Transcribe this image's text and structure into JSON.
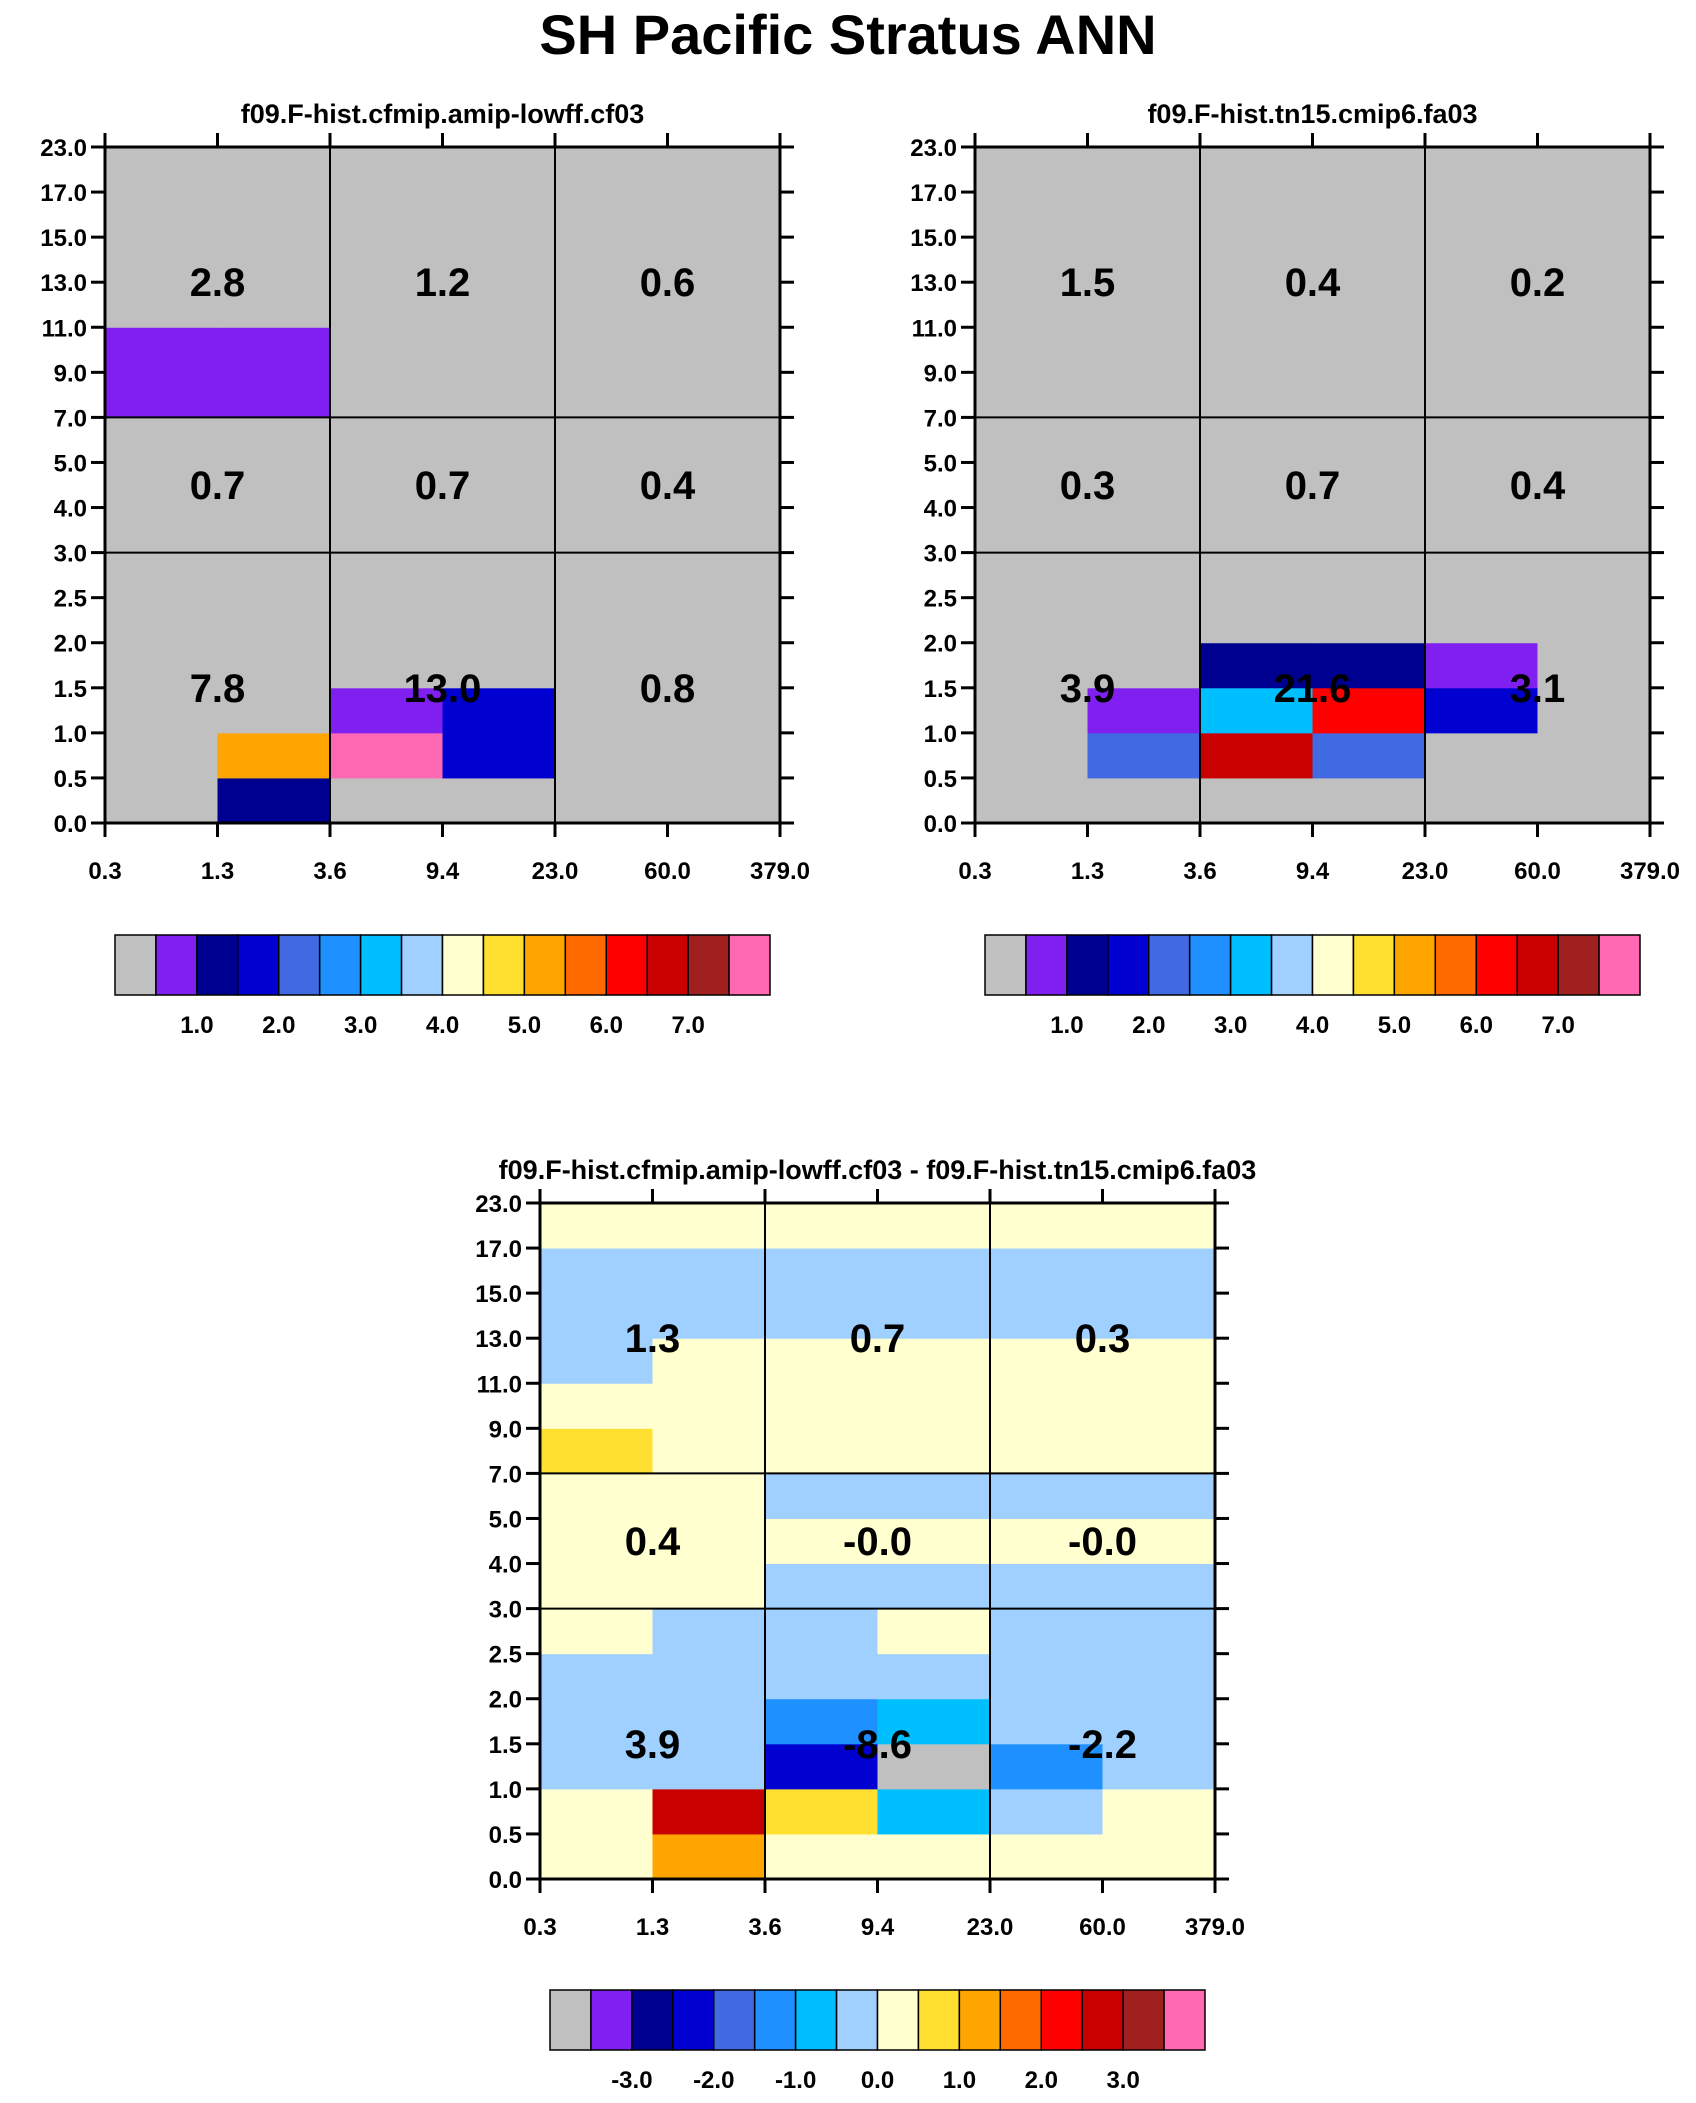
{
  "title": "SH Pacific Stratus ANN",
  "palette": [
    "#c0c0c0",
    "#8020f0",
    "#000090",
    "#0000d0",
    "#4169e1",
    "#1e90ff",
    "#00bfff",
    "#a0d0ff",
    "#ffffd0",
    "#ffe030",
    "#ffa500",
    "#ff6a00",
    "#ff0000",
    "#c80000",
    "#a02020",
    "#ff69b4"
  ],
  "chart_data": [
    {
      "type": "heatmap",
      "title": "f09.F-hist.cfmip.amip-lowff.cf03",
      "x_ticks": [
        "0.3",
        "1.3",
        "3.6",
        "9.4",
        "23.0",
        "60.0",
        "379.0"
      ],
      "y_ticks": [
        "0.0",
        "0.5",
        "1.0",
        "1.5",
        "2.0",
        "2.5",
        "3.0",
        "4.0",
        "5.0",
        "7.0",
        "9.0",
        "11.0",
        "13.0",
        "15.0",
        "17.0",
        "23.0"
      ],
      "sum_labels": [
        [
          "7.8",
          "13.0",
          "0.8"
        ],
        [
          "0.7",
          "0.7",
          "0.4"
        ],
        [
          "2.8",
          "1.2",
          "0.6"
        ]
      ],
      "grid": [
        [
          0,
          2,
          0,
          0,
          0,
          0
        ],
        [
          0,
          10,
          15,
          3,
          0,
          0
        ],
        [
          0,
          0,
          1,
          3,
          0,
          0
        ],
        [
          0,
          0,
          0,
          0,
          0,
          0
        ],
        [
          0,
          0,
          0,
          0,
          0,
          0
        ],
        [
          0,
          0,
          0,
          0,
          0,
          0
        ],
        [
          0,
          0,
          0,
          0,
          0,
          0
        ],
        [
          0,
          0,
          0,
          0,
          0,
          0
        ],
        [
          0,
          0,
          0,
          0,
          0,
          0
        ],
        [
          1,
          1,
          0,
          0,
          0,
          0
        ],
        [
          1,
          1,
          0,
          0,
          0,
          0
        ],
        [
          0,
          0,
          0,
          0,
          0,
          0
        ],
        [
          0,
          0,
          0,
          0,
          0,
          0
        ],
        [
          0,
          0,
          0,
          0,
          0,
          0
        ],
        [
          0,
          0,
          0,
          0,
          0,
          0
        ]
      ],
      "colorbar_labels": [
        "1.0",
        "2.0",
        "3.0",
        "4.0",
        "5.0",
        "6.0",
        "7.0"
      ]
    },
    {
      "type": "heatmap",
      "title": "f09.F-hist.tn15.cmip6.fa03",
      "x_ticks": [
        "0.3",
        "1.3",
        "3.6",
        "9.4",
        "23.0",
        "60.0",
        "379.0"
      ],
      "y_ticks": [
        "0.0",
        "0.5",
        "1.0",
        "1.5",
        "2.0",
        "2.5",
        "3.0",
        "4.0",
        "5.0",
        "7.0",
        "9.0",
        "11.0",
        "13.0",
        "15.0",
        "17.0",
        "23.0"
      ],
      "sum_labels": [
        [
          "3.9",
          "21.6",
          "3.1"
        ],
        [
          "0.3",
          "0.7",
          "0.4"
        ],
        [
          "1.5",
          "0.4",
          "0.2"
        ]
      ],
      "grid": [
        [
          0,
          0,
          0,
          0,
          0,
          0
        ],
        [
          0,
          4,
          13,
          4,
          0,
          0
        ],
        [
          0,
          1,
          6,
          12,
          3,
          0
        ],
        [
          0,
          0,
          2,
          2,
          1,
          0
        ],
        [
          0,
          0,
          0,
          0,
          0,
          0
        ],
        [
          0,
          0,
          0,
          0,
          0,
          0
        ],
        [
          0,
          0,
          0,
          0,
          0,
          0
        ],
        [
          0,
          0,
          0,
          0,
          0,
          0
        ],
        [
          0,
          0,
          0,
          0,
          0,
          0
        ],
        [
          0,
          0,
          0,
          0,
          0,
          0
        ],
        [
          0,
          0,
          0,
          0,
          0,
          0
        ],
        [
          0,
          0,
          0,
          0,
          0,
          0
        ],
        [
          0,
          0,
          0,
          0,
          0,
          0
        ],
        [
          0,
          0,
          0,
          0,
          0,
          0
        ],
        [
          0,
          0,
          0,
          0,
          0,
          0
        ]
      ],
      "colorbar_labels": [
        "1.0",
        "2.0",
        "3.0",
        "4.0",
        "5.0",
        "6.0",
        "7.0"
      ]
    },
    {
      "type": "heatmap",
      "title": "f09.F-hist.cfmip.amip-lowff.cf03 - f09.F-hist.tn15.cmip6.fa03",
      "x_ticks": [
        "0.3",
        "1.3",
        "3.6",
        "9.4",
        "23.0",
        "60.0",
        "379.0"
      ],
      "y_ticks": [
        "0.0",
        "0.5",
        "1.0",
        "1.5",
        "2.0",
        "2.5",
        "3.0",
        "4.0",
        "5.0",
        "7.0",
        "9.0",
        "11.0",
        "13.0",
        "15.0",
        "17.0",
        "23.0"
      ],
      "sum_labels": [
        [
          "3.9",
          "-8.6",
          "-2.2"
        ],
        [
          "0.4",
          "-0.0",
          "-0.0"
        ],
        [
          "1.3",
          "0.7",
          "0.3"
        ]
      ],
      "grid": [
        [
          8,
          10,
          8,
          8,
          8,
          8
        ],
        [
          8,
          13,
          9,
          6,
          7,
          8
        ],
        [
          7,
          7,
          3,
          0,
          5,
          7
        ],
        [
          7,
          7,
          5,
          6,
          7,
          7
        ],
        [
          7,
          7,
          7,
          7,
          7,
          7
        ],
        [
          8,
          7,
          7,
          8,
          7,
          7
        ],
        [
          8,
          8,
          7,
          7,
          7,
          7
        ],
        [
          8,
          8,
          8,
          8,
          8,
          8
        ],
        [
          8,
          8,
          7,
          7,
          7,
          7
        ],
        [
          9,
          8,
          8,
          8,
          8,
          8
        ],
        [
          8,
          8,
          8,
          8,
          8,
          8
        ],
        [
          7,
          8,
          8,
          8,
          8,
          8
        ],
        [
          7,
          7,
          7,
          7,
          7,
          7
        ],
        [
          7,
          7,
          7,
          7,
          7,
          7
        ],
        [
          8,
          8,
          8,
          8,
          8,
          8
        ]
      ],
      "colorbar_labels": [
        "-3.0",
        "-2.0",
        "-1.0",
        "0.0",
        "1.0",
        "2.0",
        "3.0"
      ]
    }
  ]
}
